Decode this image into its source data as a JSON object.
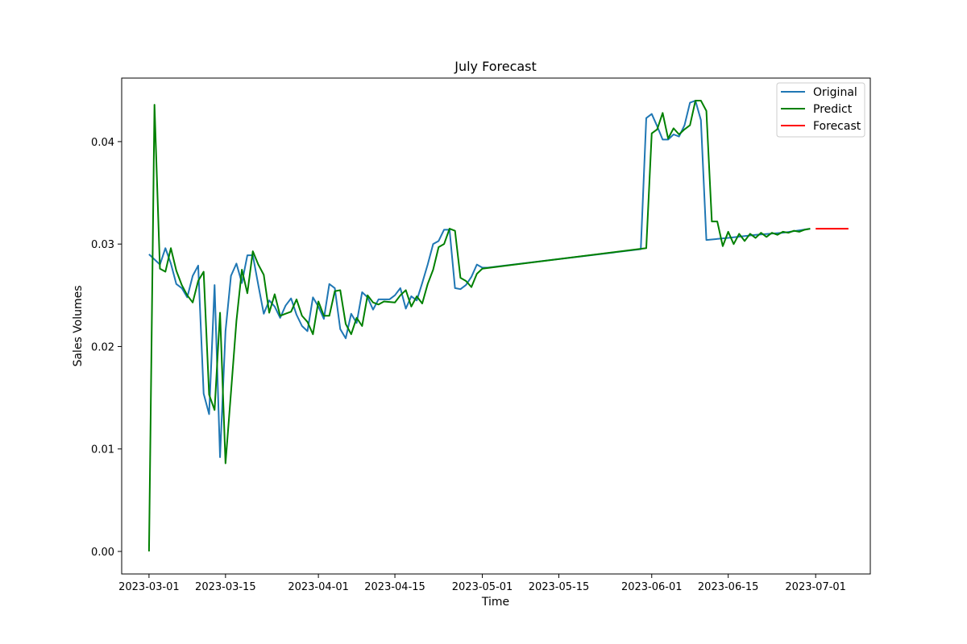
{
  "chart_data": {
    "type": "line",
    "title": "July Forecast",
    "xlabel": "Time",
    "ylabel": "Sales Volumes",
    "x_axis_type": "date",
    "xlim": [
      "2023-02-24",
      "2023-07-11"
    ],
    "ylim": [
      -0.0022,
      0.0462
    ],
    "x_ticks": [
      "2023-03-01",
      "2023-03-15",
      "2023-04-01",
      "2023-04-15",
      "2023-05-01",
      "2023-05-15",
      "2023-06-01",
      "2023-06-15",
      "2023-07-01"
    ],
    "y_ticks": [
      0.0,
      0.01,
      0.02,
      0.03,
      0.04
    ],
    "y_tick_labels": [
      "0.00",
      "0.01",
      "0.02",
      "0.03",
      "0.04"
    ],
    "grid": false,
    "legend": {
      "placement": "top-right"
    },
    "series": [
      {
        "name": "Original",
        "color": "#1f77b4",
        "points": [
          [
            "2023-03-01",
            0.029
          ],
          [
            "2023-03-03",
            0.028
          ],
          [
            "2023-03-04",
            0.0296
          ],
          [
            "2023-03-05",
            0.0281
          ],
          [
            "2023-03-06",
            0.0261
          ],
          [
            "2023-03-07",
            0.0257
          ],
          [
            "2023-03-08",
            0.0248
          ],
          [
            "2023-03-09",
            0.0269
          ],
          [
            "2023-03-10",
            0.0279
          ],
          [
            "2023-03-11",
            0.0154
          ],
          [
            "2023-03-12",
            0.0134
          ],
          [
            "2023-03-13",
            0.026
          ],
          [
            "2023-03-14",
            0.0092
          ],
          [
            "2023-03-15",
            0.0215
          ],
          [
            "2023-03-16",
            0.0269
          ],
          [
            "2023-03-17",
            0.0281
          ],
          [
            "2023-03-18",
            0.0262
          ],
          [
            "2023-03-19",
            0.0289
          ],
          [
            "2023-03-20",
            0.0289
          ],
          [
            "2023-03-21",
            0.026
          ],
          [
            "2023-03-22",
            0.0232
          ],
          [
            "2023-03-23",
            0.0245
          ],
          [
            "2023-03-24",
            0.0239
          ],
          [
            "2023-03-25",
            0.0228
          ],
          [
            "2023-03-26",
            0.024
          ],
          [
            "2023-03-27",
            0.0247
          ],
          [
            "2023-03-28",
            0.0231
          ],
          [
            "2023-03-29",
            0.022
          ],
          [
            "2023-03-30",
            0.0215
          ],
          [
            "2023-03-31",
            0.0248
          ],
          [
            "2023-04-01",
            0.0239
          ],
          [
            "2023-04-02",
            0.0227
          ],
          [
            "2023-04-03",
            0.0261
          ],
          [
            "2023-04-04",
            0.0257
          ],
          [
            "2023-04-05",
            0.0217
          ],
          [
            "2023-04-06",
            0.0208
          ],
          [
            "2023-04-07",
            0.0232
          ],
          [
            "2023-04-08",
            0.0223
          ],
          [
            "2023-04-09",
            0.0253
          ],
          [
            "2023-04-10",
            0.0248
          ],
          [
            "2023-04-11",
            0.0236
          ],
          [
            "2023-04-12",
            0.0246
          ],
          [
            "2023-04-14",
            0.0246
          ],
          [
            "2023-04-15",
            0.025
          ],
          [
            "2023-04-16",
            0.0257
          ],
          [
            "2023-04-17",
            0.0237
          ],
          [
            "2023-04-18",
            0.0249
          ],
          [
            "2023-04-19",
            0.0245
          ],
          [
            "2023-04-20",
            0.0262
          ],
          [
            "2023-04-21",
            0.028
          ],
          [
            "2023-04-22",
            0.03
          ],
          [
            "2023-04-23",
            0.0303
          ],
          [
            "2023-04-24",
            0.0314
          ],
          [
            "2023-04-25",
            0.0314
          ],
          [
            "2023-04-26",
            0.0257
          ],
          [
            "2023-04-27",
            0.0256
          ],
          [
            "2023-04-28",
            0.026
          ],
          [
            "2023-04-29",
            0.0268
          ],
          [
            "2023-04-30",
            0.028
          ],
          [
            "2023-05-01",
            0.0277
          ],
          [
            "2023-05-02",
            0.0277
          ],
          [
            "2023-05-30",
            0.0295
          ],
          [
            "2023-05-31",
            0.0423
          ],
          [
            "2023-06-01",
            0.0427
          ],
          [
            "2023-06-02",
            0.0415
          ],
          [
            "2023-06-03",
            0.0402
          ],
          [
            "2023-06-04",
            0.0402
          ],
          [
            "2023-06-05",
            0.0407
          ],
          [
            "2023-06-06",
            0.0405
          ],
          [
            "2023-06-07",
            0.0416
          ],
          [
            "2023-06-08",
            0.0438
          ],
          [
            "2023-06-09",
            0.044
          ],
          [
            "2023-06-10",
            0.0421
          ],
          [
            "2023-06-11",
            0.0304
          ],
          [
            "2023-06-15",
            0.0306
          ],
          [
            "2023-06-20",
            0.0309
          ],
          [
            "2023-06-25",
            0.0311
          ],
          [
            "2023-06-30",
            0.0315
          ]
        ]
      },
      {
        "name": "Predict",
        "color": "#008000",
        "points": [
          [
            "2023-03-01",
            0.0
          ],
          [
            "2023-03-02",
            0.0436
          ],
          [
            "2023-03-03",
            0.0276
          ],
          [
            "2023-03-04",
            0.0273
          ],
          [
            "2023-03-05",
            0.0296
          ],
          [
            "2023-03-06",
            0.0274
          ],
          [
            "2023-03-07",
            0.026
          ],
          [
            "2023-03-08",
            0.025
          ],
          [
            "2023-03-09",
            0.0243
          ],
          [
            "2023-03-10",
            0.0264
          ],
          [
            "2023-03-11",
            0.0273
          ],
          [
            "2023-03-12",
            0.0153
          ],
          [
            "2023-03-13",
            0.0138
          ],
          [
            "2023-03-14",
            0.0233
          ],
          [
            "2023-03-15",
            0.0086
          ],
          [
            "2023-03-16",
            0.0155
          ],
          [
            "2023-03-17",
            0.0225
          ],
          [
            "2023-03-18",
            0.0275
          ],
          [
            "2023-03-19",
            0.0252
          ],
          [
            "2023-03-20",
            0.0293
          ],
          [
            "2023-03-21",
            0.028
          ],
          [
            "2023-03-22",
            0.027
          ],
          [
            "2023-03-23",
            0.0233
          ],
          [
            "2023-03-24",
            0.0251
          ],
          [
            "2023-03-25",
            0.023
          ],
          [
            "2023-03-26",
            0.0232
          ],
          [
            "2023-03-27",
            0.0234
          ],
          [
            "2023-03-28",
            0.0246
          ],
          [
            "2023-03-29",
            0.023
          ],
          [
            "2023-03-30",
            0.0224
          ],
          [
            "2023-03-31",
            0.0212
          ],
          [
            "2023-04-01",
            0.0244
          ],
          [
            "2023-04-02",
            0.023
          ],
          [
            "2023-04-03",
            0.023
          ],
          [
            "2023-04-04",
            0.0254
          ],
          [
            "2023-04-05",
            0.0255
          ],
          [
            "2023-04-06",
            0.0222
          ],
          [
            "2023-04-07",
            0.0212
          ],
          [
            "2023-04-08",
            0.0228
          ],
          [
            "2023-04-09",
            0.022
          ],
          [
            "2023-04-10",
            0.025
          ],
          [
            "2023-04-11",
            0.0243
          ],
          [
            "2023-04-12",
            0.0241
          ],
          [
            "2023-04-13",
            0.0244
          ],
          [
            "2023-04-15",
            0.0243
          ],
          [
            "2023-04-16",
            0.025
          ],
          [
            "2023-04-17",
            0.0255
          ],
          [
            "2023-04-18",
            0.0239
          ],
          [
            "2023-04-19",
            0.0249
          ],
          [
            "2023-04-20",
            0.0242
          ],
          [
            "2023-04-21",
            0.0261
          ],
          [
            "2023-04-22",
            0.0275
          ],
          [
            "2023-04-23",
            0.0297
          ],
          [
            "2023-04-24",
            0.03
          ],
          [
            "2023-04-25",
            0.0315
          ],
          [
            "2023-04-26",
            0.0313
          ],
          [
            "2023-04-27",
            0.0267
          ],
          [
            "2023-04-28",
            0.0264
          ],
          [
            "2023-04-29",
            0.0258
          ],
          [
            "2023-04-30",
            0.0271
          ],
          [
            "2023-05-01",
            0.0276
          ],
          [
            "2023-05-31",
            0.0296
          ],
          [
            "2023-06-01",
            0.0408
          ],
          [
            "2023-06-02",
            0.0412
          ],
          [
            "2023-06-03",
            0.0428
          ],
          [
            "2023-06-04",
            0.0403
          ],
          [
            "2023-06-05",
            0.0413
          ],
          [
            "2023-06-06",
            0.0407
          ],
          [
            "2023-06-07",
            0.0412
          ],
          [
            "2023-06-08",
            0.0416
          ],
          [
            "2023-06-09",
            0.044
          ],
          [
            "2023-06-10",
            0.044
          ],
          [
            "2023-06-11",
            0.043
          ],
          [
            "2023-06-12",
            0.0322
          ],
          [
            "2023-06-13",
            0.0322
          ],
          [
            "2023-06-14",
            0.0298
          ],
          [
            "2023-06-15",
            0.0312
          ],
          [
            "2023-06-16",
            0.03
          ],
          [
            "2023-06-17",
            0.031
          ],
          [
            "2023-06-18",
            0.0303
          ],
          [
            "2023-06-19",
            0.031
          ],
          [
            "2023-06-20",
            0.0306
          ],
          [
            "2023-06-21",
            0.0311
          ],
          [
            "2023-06-22",
            0.0307
          ],
          [
            "2023-06-23",
            0.0311
          ],
          [
            "2023-06-24",
            0.0309
          ],
          [
            "2023-06-25",
            0.0312
          ],
          [
            "2023-06-26",
            0.0311
          ],
          [
            "2023-06-27",
            0.0313
          ],
          [
            "2023-06-28",
            0.0312
          ],
          [
            "2023-06-29",
            0.0314
          ],
          [
            "2023-06-30",
            0.0315
          ]
        ]
      },
      {
        "name": "Forecast",
        "color": "#ff0000",
        "points": [
          [
            "2023-07-01",
            0.0315
          ],
          [
            "2023-07-07",
            0.0315
          ]
        ]
      }
    ]
  }
}
